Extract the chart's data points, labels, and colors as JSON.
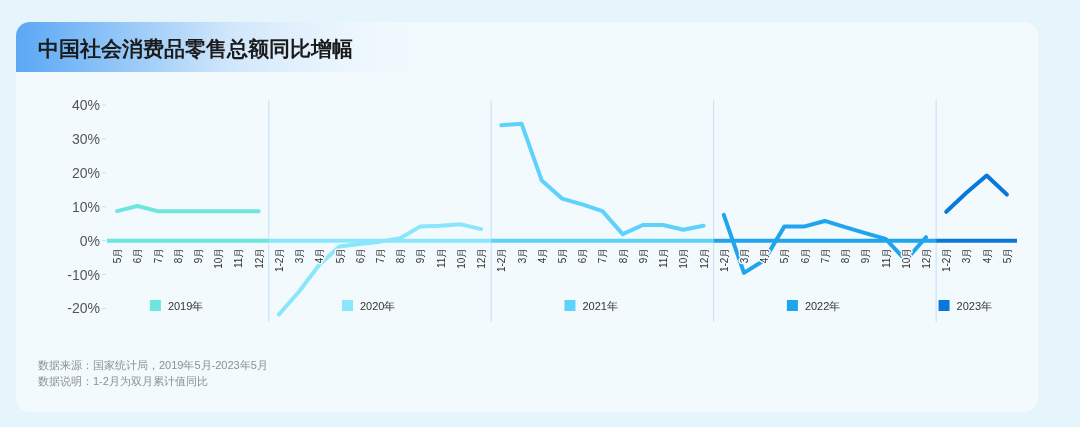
{
  "chart_data": {
    "type": "line",
    "title": "中国社会消费品零售总额同比增幅",
    "categories": [
      "5月",
      "6月",
      "7月",
      "8月",
      "9月",
      "10月",
      "11月",
      "12月",
      "1-2月",
      "3月",
      "4月",
      "5月",
      "6月",
      "7月",
      "8月",
      "9月",
      "11月",
      "10月",
      "12月",
      "1-2月",
      "3月",
      "4月",
      "5月",
      "6月",
      "7月",
      "8月",
      "9月",
      "11月",
      "10月",
      "12月",
      "1-2月",
      "3月",
      "4月",
      "5月",
      "6月",
      "7月",
      "8月",
      "9月",
      "11月",
      "10月",
      "12月",
      "1-2月",
      "3月",
      "4月",
      "5月"
    ],
    "series": [
      {
        "name": "2019年",
        "color": "#6ee6e0",
        "values": [
          8.7,
          10.2,
          8.7,
          8.7,
          8.7,
          8.7,
          8.7,
          8.7,
          null,
          null,
          null,
          null,
          null,
          null,
          null,
          null,
          null,
          null,
          null,
          null,
          null,
          null,
          null,
          null,
          null,
          null,
          null,
          null,
          null,
          null,
          null,
          null,
          null,
          null,
          null,
          null,
          null,
          null,
          null,
          null,
          null,
          null,
          null,
          null,
          null
        ]
      },
      {
        "name": "2020年",
        "color": "#8ae6fb",
        "values": [
          null,
          null,
          null,
          null,
          null,
          null,
          null,
          null,
          -21.8,
          -15,
          -7.1,
          -1.7,
          -1,
          -0.3,
          0.7,
          4.2,
          4.4,
          4.8,
          3.4,
          null,
          null,
          null,
          null,
          null,
          null,
          null,
          null,
          null,
          null,
          null,
          null,
          null,
          null,
          null,
          null,
          null,
          null,
          null,
          null,
          null,
          null,
          null,
          null,
          null,
          null
        ]
      },
      {
        "name": "2021年",
        "color": "#5dd2fb",
        "values": [
          null,
          null,
          null,
          null,
          null,
          null,
          null,
          null,
          null,
          null,
          null,
          null,
          null,
          null,
          null,
          null,
          null,
          null,
          null,
          34,
          34.5,
          17.7,
          12.4,
          10.7,
          8.7,
          1.9,
          4.6,
          4.6,
          3.2,
          4.4,
          null,
          null,
          null,
          null,
          null,
          null,
          null,
          null,
          null,
          null,
          null,
          null,
          null,
          null,
          null
        ]
      },
      {
        "name": "2022年",
        "color": "#1fa5ee",
        "values": [
          null,
          null,
          null,
          null,
          null,
          null,
          null,
          null,
          null,
          null,
          null,
          null,
          null,
          null,
          null,
          null,
          null,
          null,
          null,
          null,
          null,
          null,
          null,
          null,
          null,
          null,
          null,
          null,
          null,
          null,
          7.6,
          -9.5,
          -5.8,
          4.2,
          4.2,
          5.8,
          4,
          2.2,
          0.5,
          -5.8,
          1,
          null,
          null,
          null,
          null
        ]
      },
      {
        "name": "2023年",
        "color": "#0a78d8",
        "values": [
          null,
          null,
          null,
          null,
          null,
          null,
          null,
          null,
          null,
          null,
          null,
          null,
          null,
          null,
          null,
          null,
          null,
          null,
          null,
          null,
          null,
          null,
          null,
          null,
          null,
          null,
          null,
          null,
          null,
          null,
          null,
          null,
          null,
          null,
          null,
          null,
          null,
          null,
          null,
          null,
          null,
          8.5,
          14.1,
          19.2,
          13.6
        ]
      }
    ],
    "ylim": [
      -24,
      40
    ],
    "yticks": [
      {
        "value": -20,
        "label": "-20%"
      },
      {
        "value": -10,
        "label": "-10%"
      },
      {
        "value": 0,
        "label": "0%"
      },
      {
        "value": 10,
        "label": "10%"
      },
      {
        "value": 20,
        "label": "20%"
      },
      {
        "value": 30,
        "label": "30%"
      },
      {
        "value": 40,
        "label": "40%"
      }
    ],
    "ref_lines": [
      {
        "axis": "y",
        "value": 0,
        "color": "#6ee6e0"
      },
      {
        "axis": "y",
        "value": 0,
        "color": "#8ae6fb"
      },
      {
        "axis": "y",
        "value": 0,
        "color": "#5dd2fb"
      },
      {
        "axis": "y",
        "value": 0,
        "color": "#1fa5ee"
      },
      {
        "axis": "y",
        "value": 0,
        "color": "#0a78d8"
      }
    ],
    "legend": "bottom",
    "marker": "none",
    "line_style": "solid",
    "annotations": [
      "数据来源：国家统计局，2019年5月-2023年5月",
      "数据说明：1-2月为双月累计值同比"
    ]
  }
}
